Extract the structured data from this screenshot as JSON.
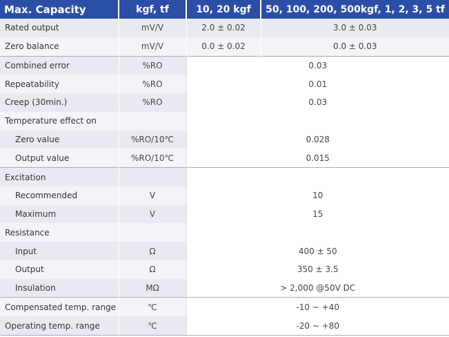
{
  "header": {
    "c1": "Max. Capacity",
    "c2": "kgf, tf",
    "c3": "10, 20 kgf",
    "c4": "50, 100, 200, 500kgf, 1, 2, 3, 5 tf"
  },
  "rows": {
    "rated_output": {
      "label": "Rated output",
      "unit": "mV/V",
      "v1": "2.0 ± 0.02",
      "v2": "3.0 ± 0.03"
    },
    "zero_balance": {
      "label": "Zero balance",
      "unit": "mV/V",
      "v1": "0.0 ± 0.02",
      "v2": "0.0 ± 0.03"
    },
    "combined_error": {
      "label": "Combined error",
      "unit": "%RO",
      "value": "0.03"
    },
    "repeatability": {
      "label": "Repeatability",
      "unit": "%RO",
      "value": "0.01"
    },
    "creep": {
      "label": "Creep (30min.)",
      "unit": "%RO",
      "value": "0.03"
    },
    "temp_effect": {
      "label": "Temperature effect on"
    },
    "zero_value": {
      "label": "Zero value",
      "unit": "%RO/10℃",
      "value": "0.028"
    },
    "output_value": {
      "label": "Output  value",
      "unit": "%RO/10℃",
      "value": "0.015"
    },
    "excitation": {
      "label": "Excitation"
    },
    "recommended": {
      "label": "Recommended",
      "unit": "V",
      "value": "10"
    },
    "maximum": {
      "label": "Maximum",
      "unit": "V",
      "value": "15"
    },
    "resistance": {
      "label": "Resistance"
    },
    "input": {
      "label": "Input",
      "unit": "Ω",
      "value": "400 ± 50"
    },
    "output": {
      "label": "Output",
      "unit": "Ω",
      "value": "350 ± 3.5"
    },
    "insulation": {
      "label": "Insulation",
      "unit": "MΩ",
      "value": "> 2,000 @50V DC"
    },
    "comp_temp": {
      "label": "Compensated temp. range",
      "unit": "℃",
      "value": "-10 ~ +40"
    },
    "oper_temp": {
      "label": "Operating temp. range",
      "unit": "℃",
      "value": "-20 ~ +80"
    }
  }
}
